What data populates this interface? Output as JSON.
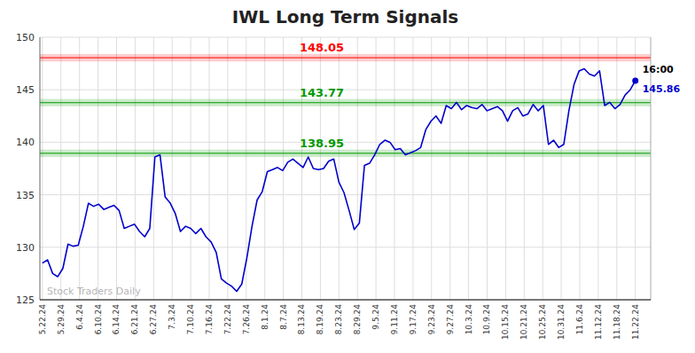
{
  "chart_data": {
    "type": "line",
    "title": "IWL Long Term Signals",
    "color": "#0000cc",
    "grid": true,
    "ylim": [
      125,
      150
    ],
    "yticks": [
      125,
      130,
      135,
      140,
      145,
      150
    ],
    "xlim": [
      -0.5,
      119
    ],
    "xticks": [
      {
        "value": 0,
        "label": "5.22.24"
      },
      {
        "value": 3.625,
        "label": "5.29.24"
      },
      {
        "value": 7.25,
        "label": "6.4.24"
      },
      {
        "value": 10.875,
        "label": "6.10.24"
      },
      {
        "value": 14.5,
        "label": "6.14.24"
      },
      {
        "value": 18.125,
        "label": "6.21.24"
      },
      {
        "value": 21.75,
        "label": "6.27.24"
      },
      {
        "value": 25.375,
        "label": "7.3.24"
      },
      {
        "value": 29,
        "label": "7.10.24"
      },
      {
        "value": 32.625,
        "label": "7.16.24"
      },
      {
        "value": 36.25,
        "label": "7.22.24"
      },
      {
        "value": 39.875,
        "label": "7.26.24"
      },
      {
        "value": 43.5,
        "label": "8.1.24"
      },
      {
        "value": 47.125,
        "label": "8.7.24"
      },
      {
        "value": 50.75,
        "label": "8.13.24"
      },
      {
        "value": 54.375,
        "label": "8.19.24"
      },
      {
        "value": 58,
        "label": "8.23.24"
      },
      {
        "value": 61.625,
        "label": "8.29.24"
      },
      {
        "value": 65.25,
        "label": "9.5.24"
      },
      {
        "value": 68.875,
        "label": "9.11.24"
      },
      {
        "value": 72.5,
        "label": "9.17.24"
      },
      {
        "value": 76.125,
        "label": "9.23.24"
      },
      {
        "value": 79.75,
        "label": "9.27.24"
      },
      {
        "value": 83.375,
        "label": "10.3.24"
      },
      {
        "value": 87,
        "label": "10.9.24"
      },
      {
        "value": 90.625,
        "label": "10.15.24"
      },
      {
        "value": 94.25,
        "label": "10.21.24"
      },
      {
        "value": 97.875,
        "label": "10.25.24"
      },
      {
        "value": 101.5,
        "label": "10.31.24"
      },
      {
        "value": 105.125,
        "label": "11.6.24"
      },
      {
        "value": 108.75,
        "label": "11.12.24"
      },
      {
        "value": 112.375,
        "label": "11.18.24"
      },
      {
        "value": 116,
        "label": "11.22.24"
      }
    ],
    "values": [
      128.5,
      128.8,
      127.5,
      127.2,
      128.0,
      130.3,
      130.1,
      130.2,
      132.0,
      134.2,
      133.9,
      134.1,
      133.6,
      133.8,
      134.0,
      133.5,
      131.8,
      132.0,
      132.2,
      131.5,
      131.0,
      131.8,
      138.6,
      138.8,
      134.8,
      134.2,
      133.2,
      131.5,
      132.0,
      131.8,
      131.3,
      131.8,
      131.0,
      130.5,
      129.5,
      127.0,
      126.6,
      126.3,
      125.8,
      126.5,
      129.0,
      132.0,
      134.5,
      135.3,
      137.2,
      137.4,
      137.6,
      137.3,
      138.1,
      138.4,
      138.0,
      137.6,
      138.6,
      137.5,
      137.4,
      137.5,
      138.2,
      138.4,
      136.2,
      135.2,
      133.5,
      131.7,
      132.3,
      137.8,
      138.0,
      138.8,
      139.8,
      140.2,
      140.0,
      139.3,
      139.4,
      138.8,
      139.0,
      139.2,
      139.5,
      141.2,
      142.0,
      142.5,
      141.8,
      143.5,
      143.2,
      143.8,
      143.1,
      143.5,
      143.3,
      143.2,
      143.6,
      143.0,
      143.2,
      143.4,
      143.0,
      142.0,
      143.0,
      143.3,
      142.5,
      142.7,
      143.6,
      143.0,
      143.5,
      139.8,
      140.2,
      139.5,
      139.8,
      143.0,
      145.5,
      146.8,
      147.0,
      146.5,
      146.3,
      146.8,
      143.5,
      143.8,
      143.2,
      143.6,
      144.5,
      145.0,
      145.86
    ],
    "reference_lines": [
      {
        "value": 148.05,
        "label": "148.05",
        "color": "#ff0000",
        "band_half_width": 0.35
      },
      {
        "value": 143.77,
        "label": "143.77",
        "color": "#009900",
        "band_half_width": 0.35
      },
      {
        "value": 138.95,
        "label": "138.95",
        "color": "#009900",
        "band_half_width": 0.35
      }
    ],
    "last_point": {
      "time": "16:00",
      "value": 145.86
    },
    "watermark": "Stock Traders Daily"
  }
}
